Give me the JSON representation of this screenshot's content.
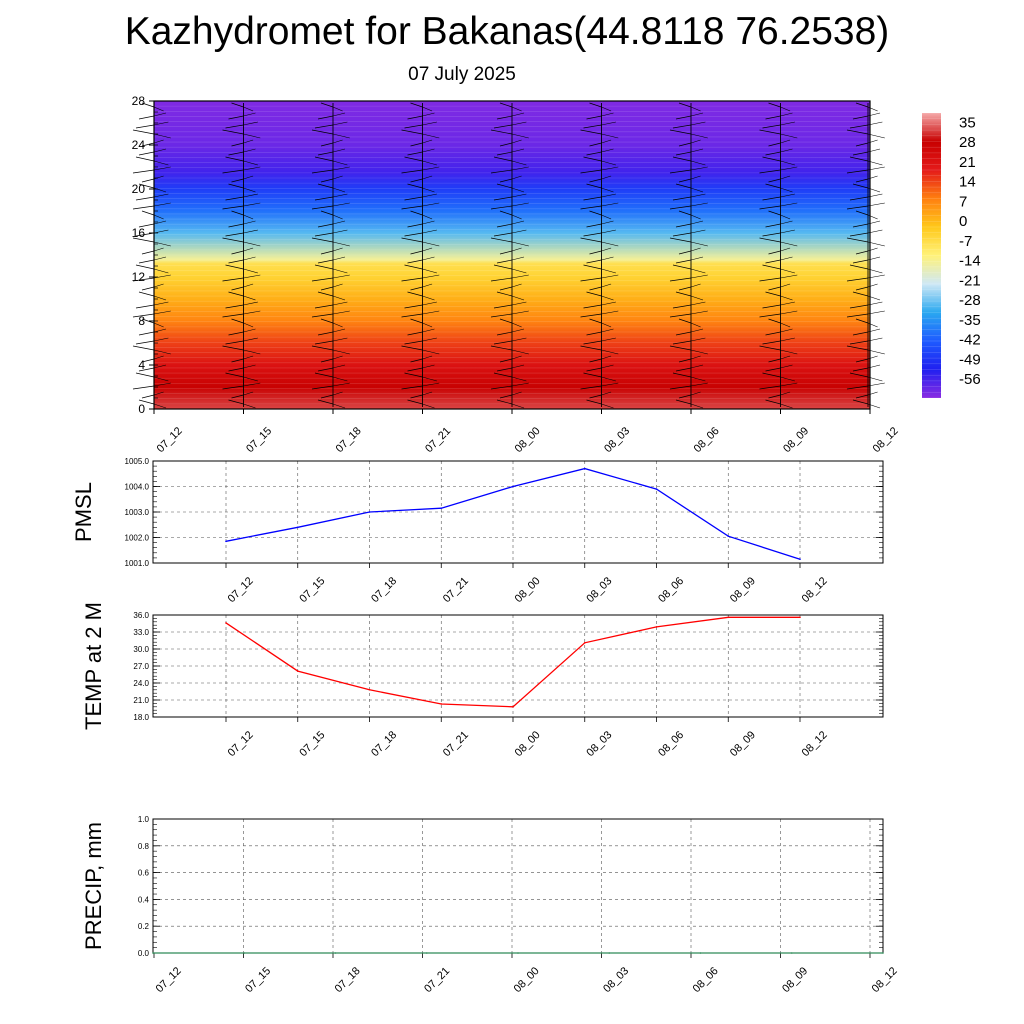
{
  "title": "Kazhydromet for Bakanas(44.8118 76.2538)",
  "subtitle": "07 July 2025",
  "chart_data": [
    {
      "type": "heatmap",
      "description_axes": "time vs height",
      "x_tick_labels": [
        "07_12",
        "07_15",
        "07_18",
        "07_21",
        "08_00",
        "08_03",
        "08_06",
        "08_09",
        "08_12"
      ],
      "y_tick_labels": [
        "0",
        "4",
        "8",
        "12",
        "16",
        "20",
        "24",
        "28"
      ],
      "ylim": [
        0,
        28
      ],
      "colorbar_labels": [
        "35",
        "28",
        "21",
        "14",
        "7",
        "0",
        "-7",
        "-14",
        "-21",
        "-28",
        "-35",
        "-42",
        "-49",
        "-56"
      ],
      "colorbar_range": [
        -63,
        38
      ],
      "colors_low_to_high": [
        "#8a2be2",
        "#2020f0",
        "#1e5bff",
        "#2aa8f0",
        "#cfe8f5",
        "#fff27a",
        "#ffc81a",
        "#ff7f10",
        "#e41a1a",
        "#c80000",
        "#f5aaaa"
      ],
      "level_values_c": [
        {
          "height": 0,
          "value": 32
        },
        {
          "height": 2,
          "value": 28
        },
        {
          "height": 4,
          "value": 21
        },
        {
          "height": 6,
          "value": 14
        },
        {
          "height": 8,
          "value": 7
        },
        {
          "height": 10,
          "value": 1
        },
        {
          "height": 12,
          "value": -5
        },
        {
          "height": 13.2,
          "value": -8
        },
        {
          "height": 13.6,
          "value": -15
        },
        {
          "height": 16,
          "value": -30
        },
        {
          "height": 18,
          "value": -40
        },
        {
          "height": 20,
          "value": -48
        },
        {
          "height": 21.5,
          "value": -56
        },
        {
          "height": 24,
          "value": -60
        },
        {
          "height": 28,
          "value": -62
        }
      ]
    },
    {
      "type": "line",
      "ylabel": "PMSL",
      "x_tick_labels": [
        "07_12",
        "07_15",
        "07_18",
        "07_21",
        "08_00",
        "08_03",
        "08_06",
        "08_09",
        "08_12"
      ],
      "y_tick_labels": [
        "1005.0",
        "1004.0",
        "1003.0",
        "1002.0",
        "1001.0"
      ],
      "ylim": [
        1001.0,
        1005.0
      ],
      "grid": true,
      "series": [
        {
          "color": "#0000ff",
          "values": [
            1001.85,
            1002.4,
            1003.0,
            1003.15,
            1004.0,
            1004.7,
            1003.9,
            1002.05,
            1001.15
          ]
        }
      ]
    },
    {
      "type": "line",
      "ylabel": "TEMP at 2 M",
      "x_tick_labels": [
        "07_12",
        "07_15",
        "07_18",
        "07_21",
        "08_00",
        "08_03",
        "08_06",
        "08_09",
        "08_12"
      ],
      "y_tick_labels": [
        "36.0",
        "33.0",
        "30.0",
        "27.0",
        "24.0",
        "21.0",
        "18.0"
      ],
      "ylim": [
        18.0,
        36.0
      ],
      "grid": true,
      "series": [
        {
          "color": "#ff0000",
          "values": [
            34.6,
            26.1,
            22.8,
            20.3,
            19.8,
            31.1,
            33.9,
            35.6,
            35.6
          ]
        }
      ]
    },
    {
      "type": "line",
      "ylabel": "PRECIP, mm",
      "x_tick_labels": [
        "07_12",
        "07_15",
        "07_18",
        "07_21",
        "08_00",
        "08_03",
        "08_06",
        "08_09",
        "08_12"
      ],
      "y_tick_labels": [
        "1.0",
        "0.8",
        "0.6",
        "0.4",
        "0.2",
        "0.0"
      ],
      "ylim": [
        0.0,
        1.0
      ],
      "grid": true,
      "series": [
        {
          "color": "#2e8b57",
          "values": [
            0,
            0,
            0,
            0,
            0,
            0,
            0,
            0,
            0
          ]
        }
      ]
    }
  ]
}
